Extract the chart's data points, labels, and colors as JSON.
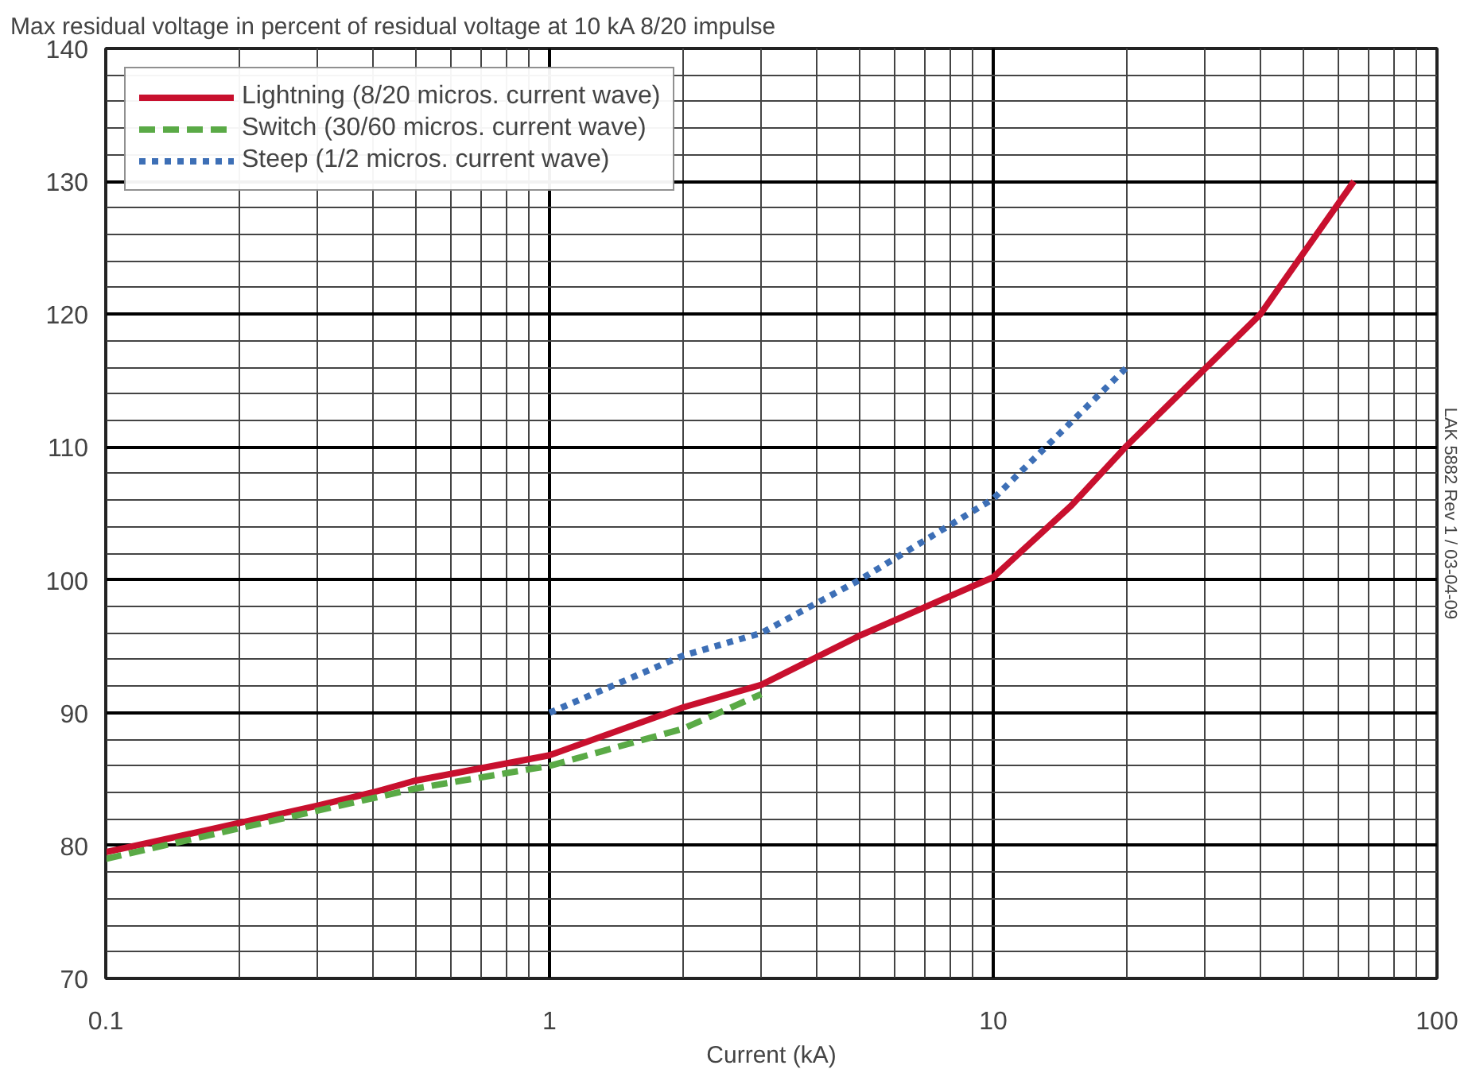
{
  "chart_data": {
    "type": "line",
    "title": "Max residual voltage in percent of residual voltage at 10 kA 8/20 impulse",
    "xlabel": "Current (kA)",
    "annotations": [
      "LAK 5882 Rev 1 / 03-04-09"
    ],
    "log": "x",
    "xlim": [
      0.1,
      100
    ],
    "xticks": [
      0.1,
      1,
      10,
      100
    ],
    "ylim": [
      70,
      140
    ],
    "yticks": [
      70,
      80,
      90,
      100,
      110,
      120,
      130,
      140
    ],
    "grid": true,
    "legend": "top left",
    "series": [
      {
        "name": "Lightning (8/20 micros. current wave)",
        "color": "#c8102e",
        "line_style": "solid",
        "x": [
          0.1,
          0.2,
          0.3,
          0.4,
          0.5,
          1,
          2,
          3,
          5,
          10,
          15,
          20,
          40,
          65
        ],
        "values": [
          79.5,
          81.7,
          83.0,
          84.0,
          84.9,
          86.8,
          90.4,
          92.1,
          95.8,
          100.2,
          105.6,
          110.1,
          120.0,
          130.0
        ]
      },
      {
        "name": "Switch (30/60 micros. current wave)",
        "color": "#5aaa46",
        "line_style": "dashed",
        "x": [
          0.1,
          0.2,
          0.5,
          1,
          2,
          3
        ],
        "values": [
          79.0,
          81.3,
          84.3,
          86.0,
          88.8,
          91.4
        ]
      },
      {
        "name": "Steep (1/2 micros. current wave)",
        "color": "#3d6fb6",
        "line_style": "dotted",
        "x": [
          1,
          2,
          3,
          5,
          10,
          20
        ],
        "values": [
          90.0,
          94.3,
          96.0,
          100.0,
          106.1,
          116.0
        ]
      }
    ]
  }
}
